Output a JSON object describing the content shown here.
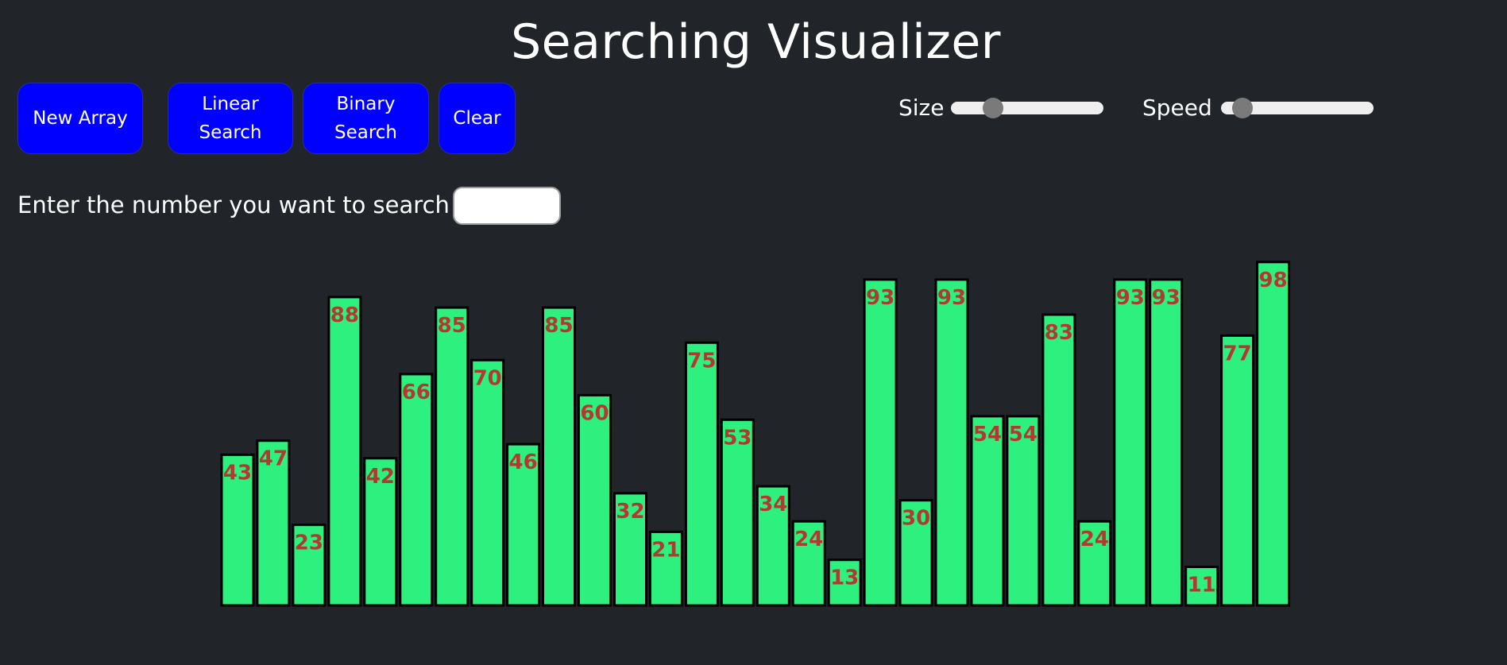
{
  "header": {
    "title": "Searching Visualizer"
  },
  "toolbar": {
    "new_array_label": "New Array",
    "linear_search_label": "Linear Search",
    "binary_search_label": "Binary Search",
    "clear_label": "Clear"
  },
  "controls": {
    "size_label": "Size",
    "speed_label": "Speed"
  },
  "search": {
    "prompt": "Enter the number you want to search",
    "value": "",
    "placeholder": ""
  },
  "colors": {
    "background": "#212429",
    "button": "#0000ff",
    "bar_fill": "#2ef07f",
    "bar_label": "#b03a2e"
  },
  "chart_data": {
    "type": "bar",
    "values": [
      43,
      47,
      23,
      88,
      42,
      66,
      85,
      70,
      46,
      85,
      60,
      32,
      21,
      75,
      53,
      34,
      24,
      13,
      93,
      30,
      93,
      54,
      54,
      83,
      24,
      93,
      93,
      11,
      77,
      98
    ],
    "ylim": [
      0,
      100
    ]
  }
}
